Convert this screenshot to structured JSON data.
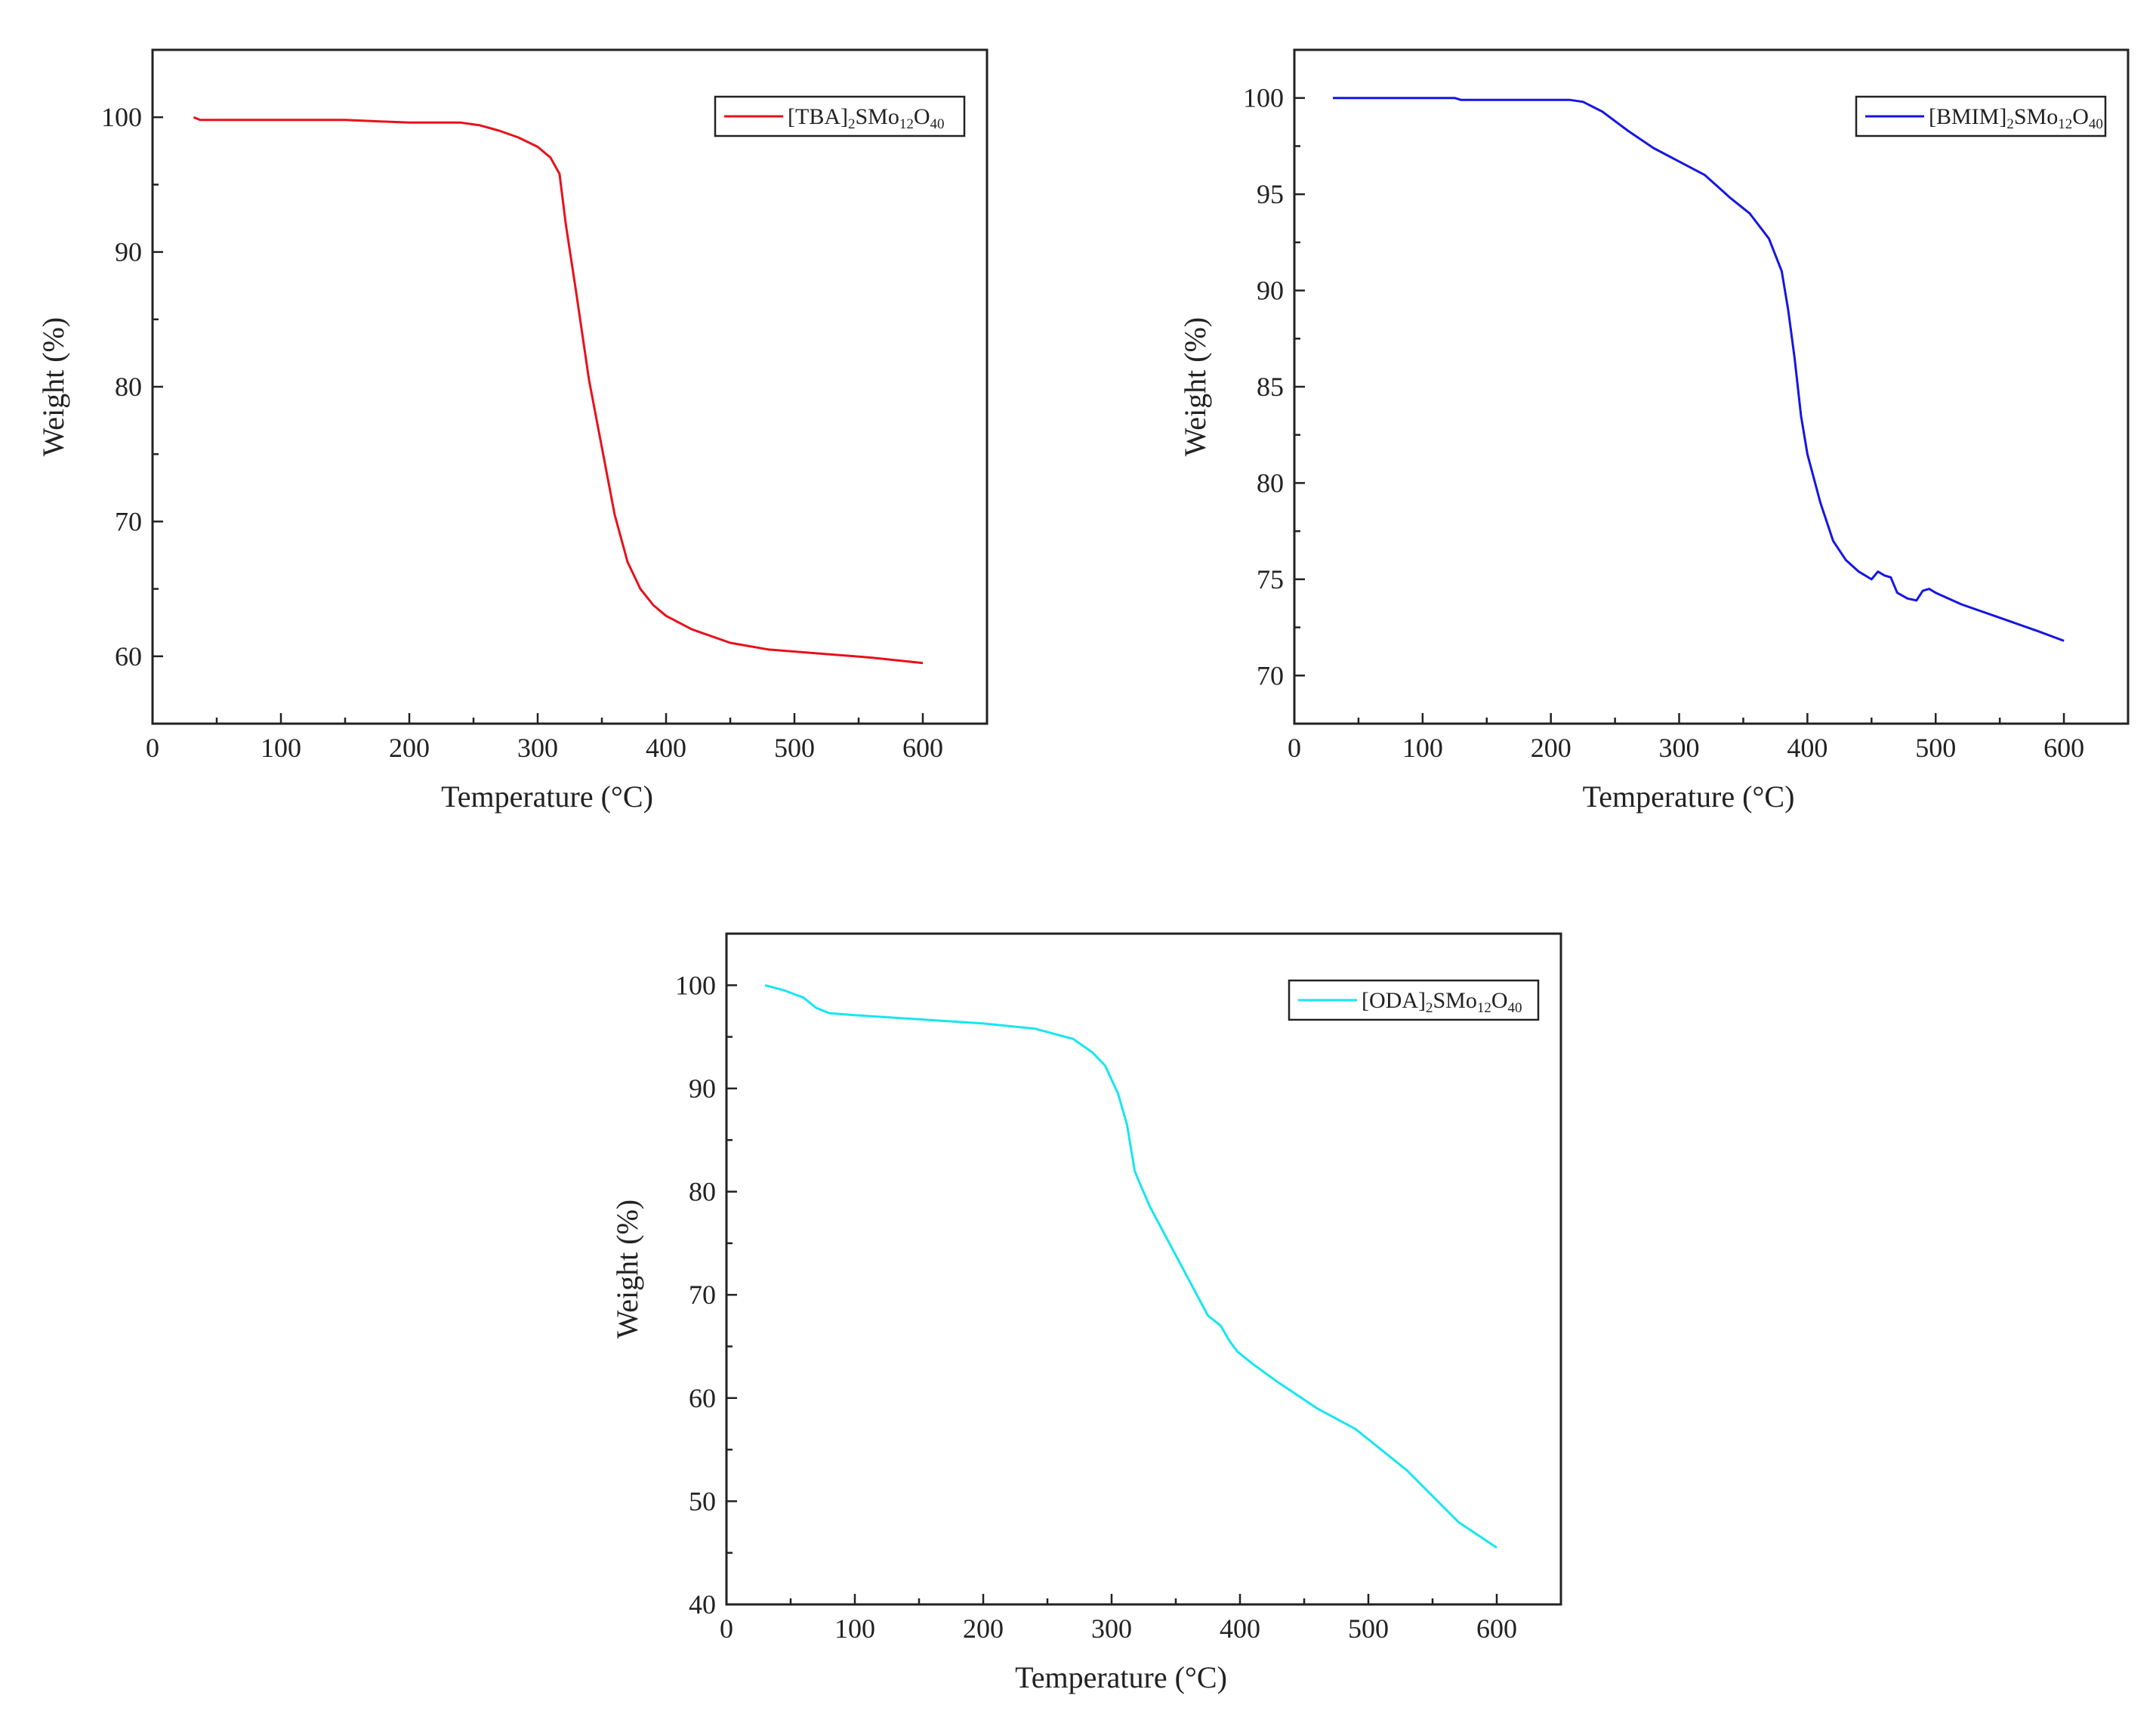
{
  "chart_data": [
    {
      "type": "line",
      "name": "tga-tba",
      "xlabel": "Temperature (°C)",
      "ylabel": "Weight (%)",
      "xlim": [
        0,
        650
      ],
      "ylim": [
        55,
        105
      ],
      "xticks": [
        0,
        100,
        200,
        300,
        400,
        500,
        600
      ],
      "yticks": [
        60,
        70,
        80,
        90,
        100
      ],
      "legend_position": "top-right",
      "color": "#e8101a",
      "series": [
        {
          "name": "[TBA]2SMo12O40",
          "legend": {
            "parts": [
              {
                "text": "[TBA]",
                "sub": false
              },
              {
                "text": "2",
                "sub": true
              },
              {
                "text": "SMo",
                "sub": false
              },
              {
                "text": "12",
                "sub": true
              },
              {
                "text": "O",
                "sub": false
              },
              {
                "text": "40",
                "sub": true
              }
            ]
          },
          "x": [
            32,
            37,
            60,
            100,
            150,
            200,
            240,
            255,
            270,
            285,
            300,
            310,
            317,
            322,
            330,
            340,
            350,
            360,
            370,
            380,
            390,
            400,
            420,
            450,
            480,
            520,
            560,
            600
          ],
          "y": [
            100.0,
            99.8,
            99.8,
            99.8,
            99.8,
            99.6,
            99.6,
            99.4,
            99.0,
            98.5,
            97.8,
            97.0,
            95.8,
            92.0,
            87.0,
            80.5,
            75.5,
            70.5,
            67.0,
            65.0,
            63.8,
            63.0,
            62.0,
            61.0,
            60.5,
            60.2,
            59.9,
            59.5
          ]
        }
      ]
    },
    {
      "type": "line",
      "name": "tga-bmim",
      "xlabel": "Temperature (°C)",
      "ylabel": "Weight (%)",
      "xlim": [
        0,
        650
      ],
      "ylim": [
        67.5,
        102.5
      ],
      "xticks": [
        0,
        100,
        200,
        300,
        400,
        500,
        600
      ],
      "yticks": [
        70,
        75,
        80,
        85,
        90,
        95,
        100
      ],
      "legend_position": "top-right",
      "color": "#1515e6",
      "series": [
        {
          "name": "[BMIM]2SMo12O40",
          "legend": {
            "parts": [
              {
                "text": "[BMIM]",
                "sub": false
              },
              {
                "text": "2",
                "sub": true
              },
              {
                "text": "SMo",
                "sub": false
              },
              {
                "text": "12",
                "sub": true
              },
              {
                "text": "O",
                "sub": false
              },
              {
                "text": "40",
                "sub": true
              }
            ]
          },
          "x": [
            30,
            80,
            125,
            130,
            180,
            215,
            225,
            240,
            260,
            280,
            300,
            320,
            330,
            340,
            355,
            370,
            380,
            385,
            390,
            395,
            400,
            410,
            420,
            430,
            440,
            450,
            455,
            460,
            465,
            470,
            478,
            485,
            490,
            495,
            500,
            520,
            550,
            580,
            600
          ],
          "y": [
            100.0,
            100.0,
            100.0,
            99.9,
            99.9,
            99.9,
            99.8,
            99.3,
            98.3,
            97.4,
            96.7,
            96.0,
            95.4,
            94.8,
            94.0,
            92.7,
            91.0,
            89.0,
            86.5,
            83.5,
            81.5,
            79.0,
            77.0,
            76.0,
            75.4,
            75.0,
            75.4,
            75.2,
            75.1,
            74.3,
            74.0,
            73.9,
            74.4,
            74.5,
            74.3,
            73.7,
            73.0,
            72.3,
            71.8
          ]
        }
      ]
    },
    {
      "type": "line",
      "name": "tga-oda",
      "xlabel": "Temperature (°C)",
      "ylabel": "Weight (%)",
      "xlim": [
        0,
        650
      ],
      "ylim": [
        40,
        105
      ],
      "xticks": [
        0,
        100,
        200,
        300,
        400,
        500,
        600
      ],
      "yticks": [
        40,
        50,
        60,
        70,
        80,
        90,
        100
      ],
      "legend_position": "top-right",
      "color": "#16e6f0",
      "series": [
        {
          "name": "[ODA]2SMo12O40",
          "legend": {
            "parts": [
              {
                "text": "[ODA]",
                "sub": false
              },
              {
                "text": "2",
                "sub": true
              },
              {
                "text": "SMo",
                "sub": false
              },
              {
                "text": "12",
                "sub": true
              },
              {
                "text": "O",
                "sub": false
              },
              {
                "text": "40",
                "sub": true
              }
            ]
          },
          "x": [
            30,
            45,
            60,
            70,
            80,
            100,
            150,
            200,
            240,
            270,
            285,
            295,
            305,
            312,
            318,
            323,
            330,
            345,
            360,
            375,
            385,
            392,
            398,
            410,
            430,
            460,
            490,
            510,
            530,
            550,
            570,
            600
          ],
          "y": [
            100.0,
            99.5,
            98.8,
            97.8,
            97.3,
            97.1,
            96.7,
            96.3,
            95.8,
            94.8,
            93.5,
            92.2,
            89.5,
            86.5,
            82.0,
            80.5,
            78.5,
            75.0,
            71.5,
            68.0,
            67.0,
            65.5,
            64.5,
            63.3,
            61.5,
            59.0,
            57.0,
            55.0,
            53.0,
            50.5,
            48.0,
            45.5
          ]
        }
      ]
    }
  ]
}
